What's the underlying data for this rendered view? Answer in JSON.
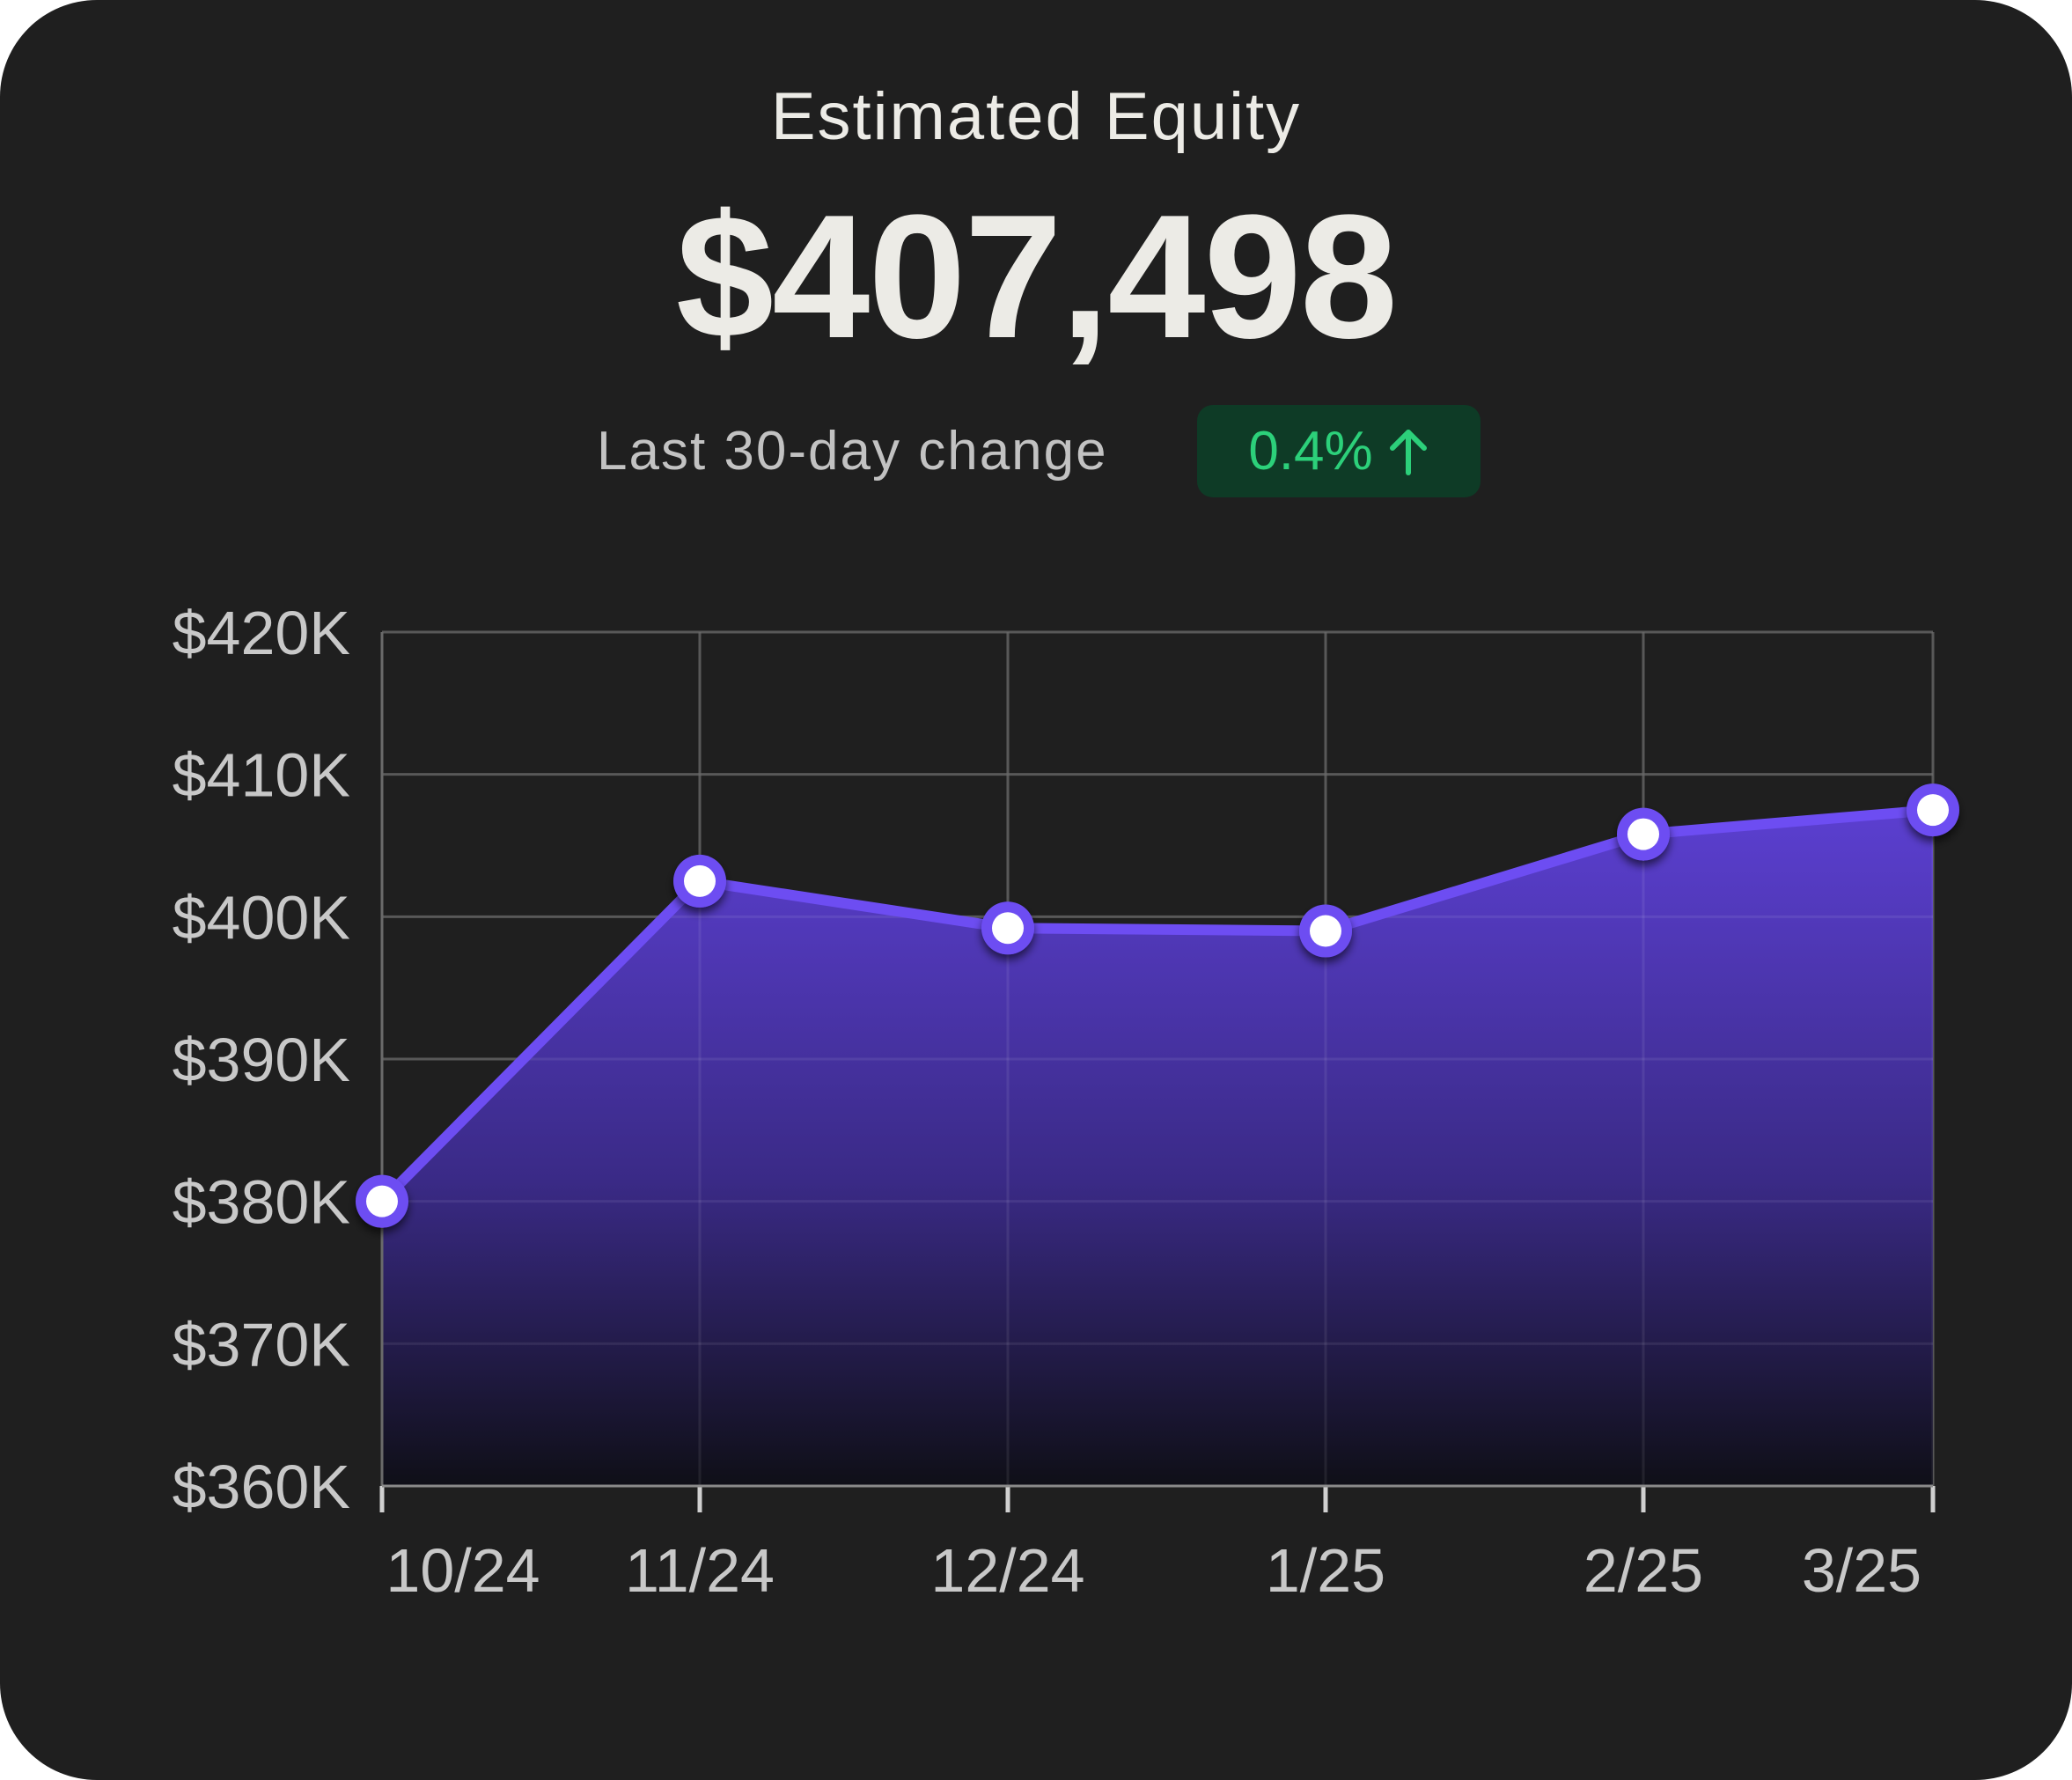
{
  "header": {
    "title": "Estimated Equity",
    "amount": "$407,498",
    "change_label": "Last 30-day change",
    "change_value": "0.4%",
    "change_icon": "arrow-up-icon"
  },
  "colors": {
    "background": "#1f1f1f",
    "line": "#6d4df2",
    "fill_top": "#5b3fd0",
    "badge_bg": "#0e3b26",
    "badge_text": "#2cd07a",
    "grid": "#4a4a4a"
  },
  "chart_data": {
    "type": "area",
    "categories": [
      "10/24",
      "11/24",
      "12/24",
      "1/25",
      "2/25",
      "3/25"
    ],
    "values": [
      380000,
      402500,
      399200,
      399000,
      405800,
      407500
    ],
    "yticks": [
      "$420K",
      "$410K",
      "$400K",
      "$390K",
      "$380K",
      "$370K",
      "$360K"
    ],
    "ylim": [
      360000,
      420000
    ],
    "grid": true,
    "legend": "none"
  }
}
